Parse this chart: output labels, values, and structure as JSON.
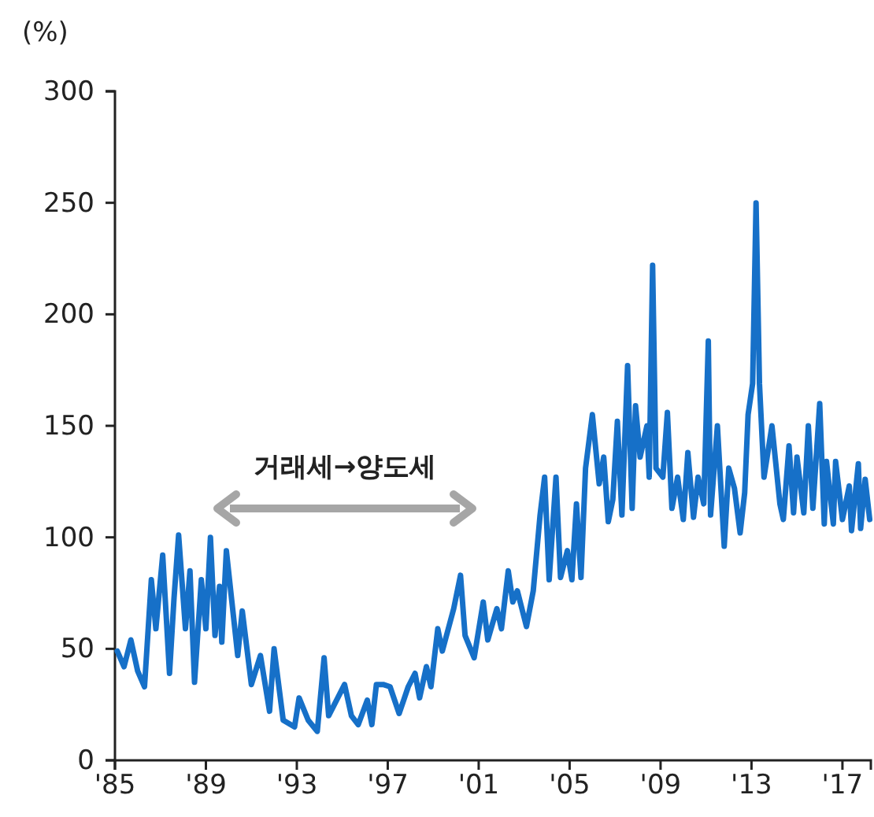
{
  "chart_data": {
    "type": "line",
    "ylabel": "(%)",
    "annotations": [
      "거래세→양도세"
    ],
    "xlim": [
      1985,
      2018.25
    ],
    "ylim": [
      0,
      300
    ],
    "xticks": [
      {
        "value": 1985,
        "label": "'85"
      },
      {
        "value": 1989,
        "label": "'89"
      },
      {
        "value": 1993,
        "label": "'93"
      },
      {
        "value": 1997,
        "label": "'97"
      },
      {
        "value": 2001,
        "label": "'01"
      },
      {
        "value": 2005,
        "label": "'05"
      },
      {
        "value": 2009,
        "label": "'09"
      },
      {
        "value": 2013,
        "label": "'13"
      },
      {
        "value": 2017,
        "label": "'17"
      }
    ],
    "yticks": [
      0,
      50,
      100,
      150,
      200,
      250,
      300
    ],
    "grid": false,
    "marker": "none",
    "line_style": "solid",
    "series": [
      {
        "color": "#1670c8",
        "x": [
          1985.1,
          1985.4,
          1985.7,
          1986.0,
          1986.3,
          1986.6,
          1986.8,
          1987.1,
          1987.4,
          1987.6,
          1987.8,
          1988.1,
          1988.3,
          1988.5,
          1988.8,
          1989.0,
          1989.2,
          1989.4,
          1989.6,
          1989.7,
          1989.9,
          1990.4,
          1990.6,
          1991.0,
          1991.4,
          1991.8,
          1992.0,
          1992.4,
          1992.9,
          1993.1,
          1993.5,
          1993.9,
          1994.2,
          1994.4,
          1995.1,
          1995.4,
          1995.7,
          1996.1,
          1996.3,
          1996.5,
          1996.8,
          1997.1,
          1997.5,
          1997.9,
          1998.2,
          1998.4,
          1998.7,
          1998.9,
          1999.2,
          1999.4,
          1999.9,
          2000.2,
          2000.4,
          2000.8,
          2001.2,
          2001.4,
          2001.8,
          2002.0,
          2002.3,
          2002.5,
          2002.7,
          2003.1,
          2003.4,
          2003.7,
          2003.9,
          2004.1,
          2004.4,
          2004.6,
          2004.9,
          2005.1,
          2005.3,
          2005.5,
          2005.7,
          2006.0,
          2006.3,
          2006.5,
          2006.7,
          2006.9,
          2007.1,
          2007.3,
          2007.55,
          2007.75,
          2007.9,
          2008.1,
          2008.4,
          2008.5,
          2008.65,
          2008.8,
          2009.1,
          2009.3,
          2009.5,
          2009.75,
          2010.0,
          2010.2,
          2010.45,
          2010.65,
          2010.9,
          2011.1,
          2011.2,
          2011.5,
          2011.8,
          2012.0,
          2012.25,
          2012.5,
          2012.7,
          2012.85,
          2013.05,
          2013.2,
          2013.35,
          2013.55,
          2013.9,
          2014.25,
          2014.4,
          2014.65,
          2014.85,
          2015.0,
          2015.3,
          2015.5,
          2015.7,
          2016.0,
          2016.2,
          2016.3,
          2016.6,
          2016.7,
          2017.0,
          2017.3,
          2017.4,
          2017.7,
          2017.8,
          2018.0,
          2018.2
        ],
        "values": [
          49,
          42,
          54,
          40,
          33,
          81,
          59,
          92,
          39,
          73,
          101,
          59,
          85,
          35,
          81,
          59,
          100,
          56,
          78,
          53,
          94,
          47,
          67,
          34,
          47,
          22,
          50,
          18,
          15,
          28,
          18,
          13,
          46,
          20,
          34,
          20,
          16,
          27,
          16,
          34,
          34,
          33,
          21,
          33,
          39,
          28,
          42,
          33,
          59,
          49,
          68,
          83,
          56,
          46,
          71,
          54,
          68,
          59,
          85,
          71,
          76,
          60,
          76,
          110,
          127,
          81,
          127,
          82,
          94,
          81,
          115,
          82,
          131,
          155,
          124,
          136,
          107,
          117,
          152,
          110,
          177,
          113,
          159,
          136,
          150,
          127,
          222,
          131,
          127,
          156,
          113,
          127,
          108,
          138,
          109,
          127,
          115,
          188,
          110,
          150,
          96,
          131,
          122,
          102,
          120,
          155,
          169,
          250,
          169,
          127,
          150,
          115,
          108,
          141,
          111,
          136,
          111,
          150,
          113,
          160,
          106,
          134,
          106,
          134,
          108,
          123,
          103,
          133,
          104,
          126,
          108
        ]
      }
    ]
  }
}
